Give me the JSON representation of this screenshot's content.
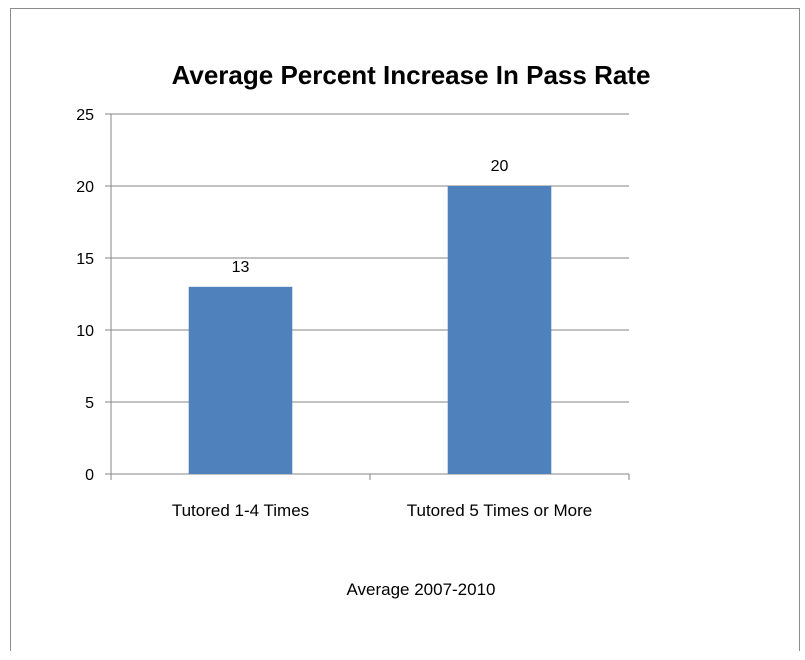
{
  "chart_data": {
    "type": "bar",
    "title": "Average Percent Increase In Pass Rate",
    "xlabel": "Average 2007-2010",
    "ylabel": "",
    "categories": [
      "Tutored 1-4 Times",
      "Tutored 5 Times or More"
    ],
    "values": [
      13,
      20
    ],
    "data_labels": [
      "13",
      "20"
    ],
    "ylim": [
      0,
      25
    ],
    "yticks": [
      0,
      5,
      10,
      15,
      20,
      25
    ],
    "grid": true,
    "legend": "none",
    "colors": {
      "bar": "#4f81bd",
      "grid": "#868686",
      "axis": "#868686",
      "text": "#000000"
    }
  }
}
